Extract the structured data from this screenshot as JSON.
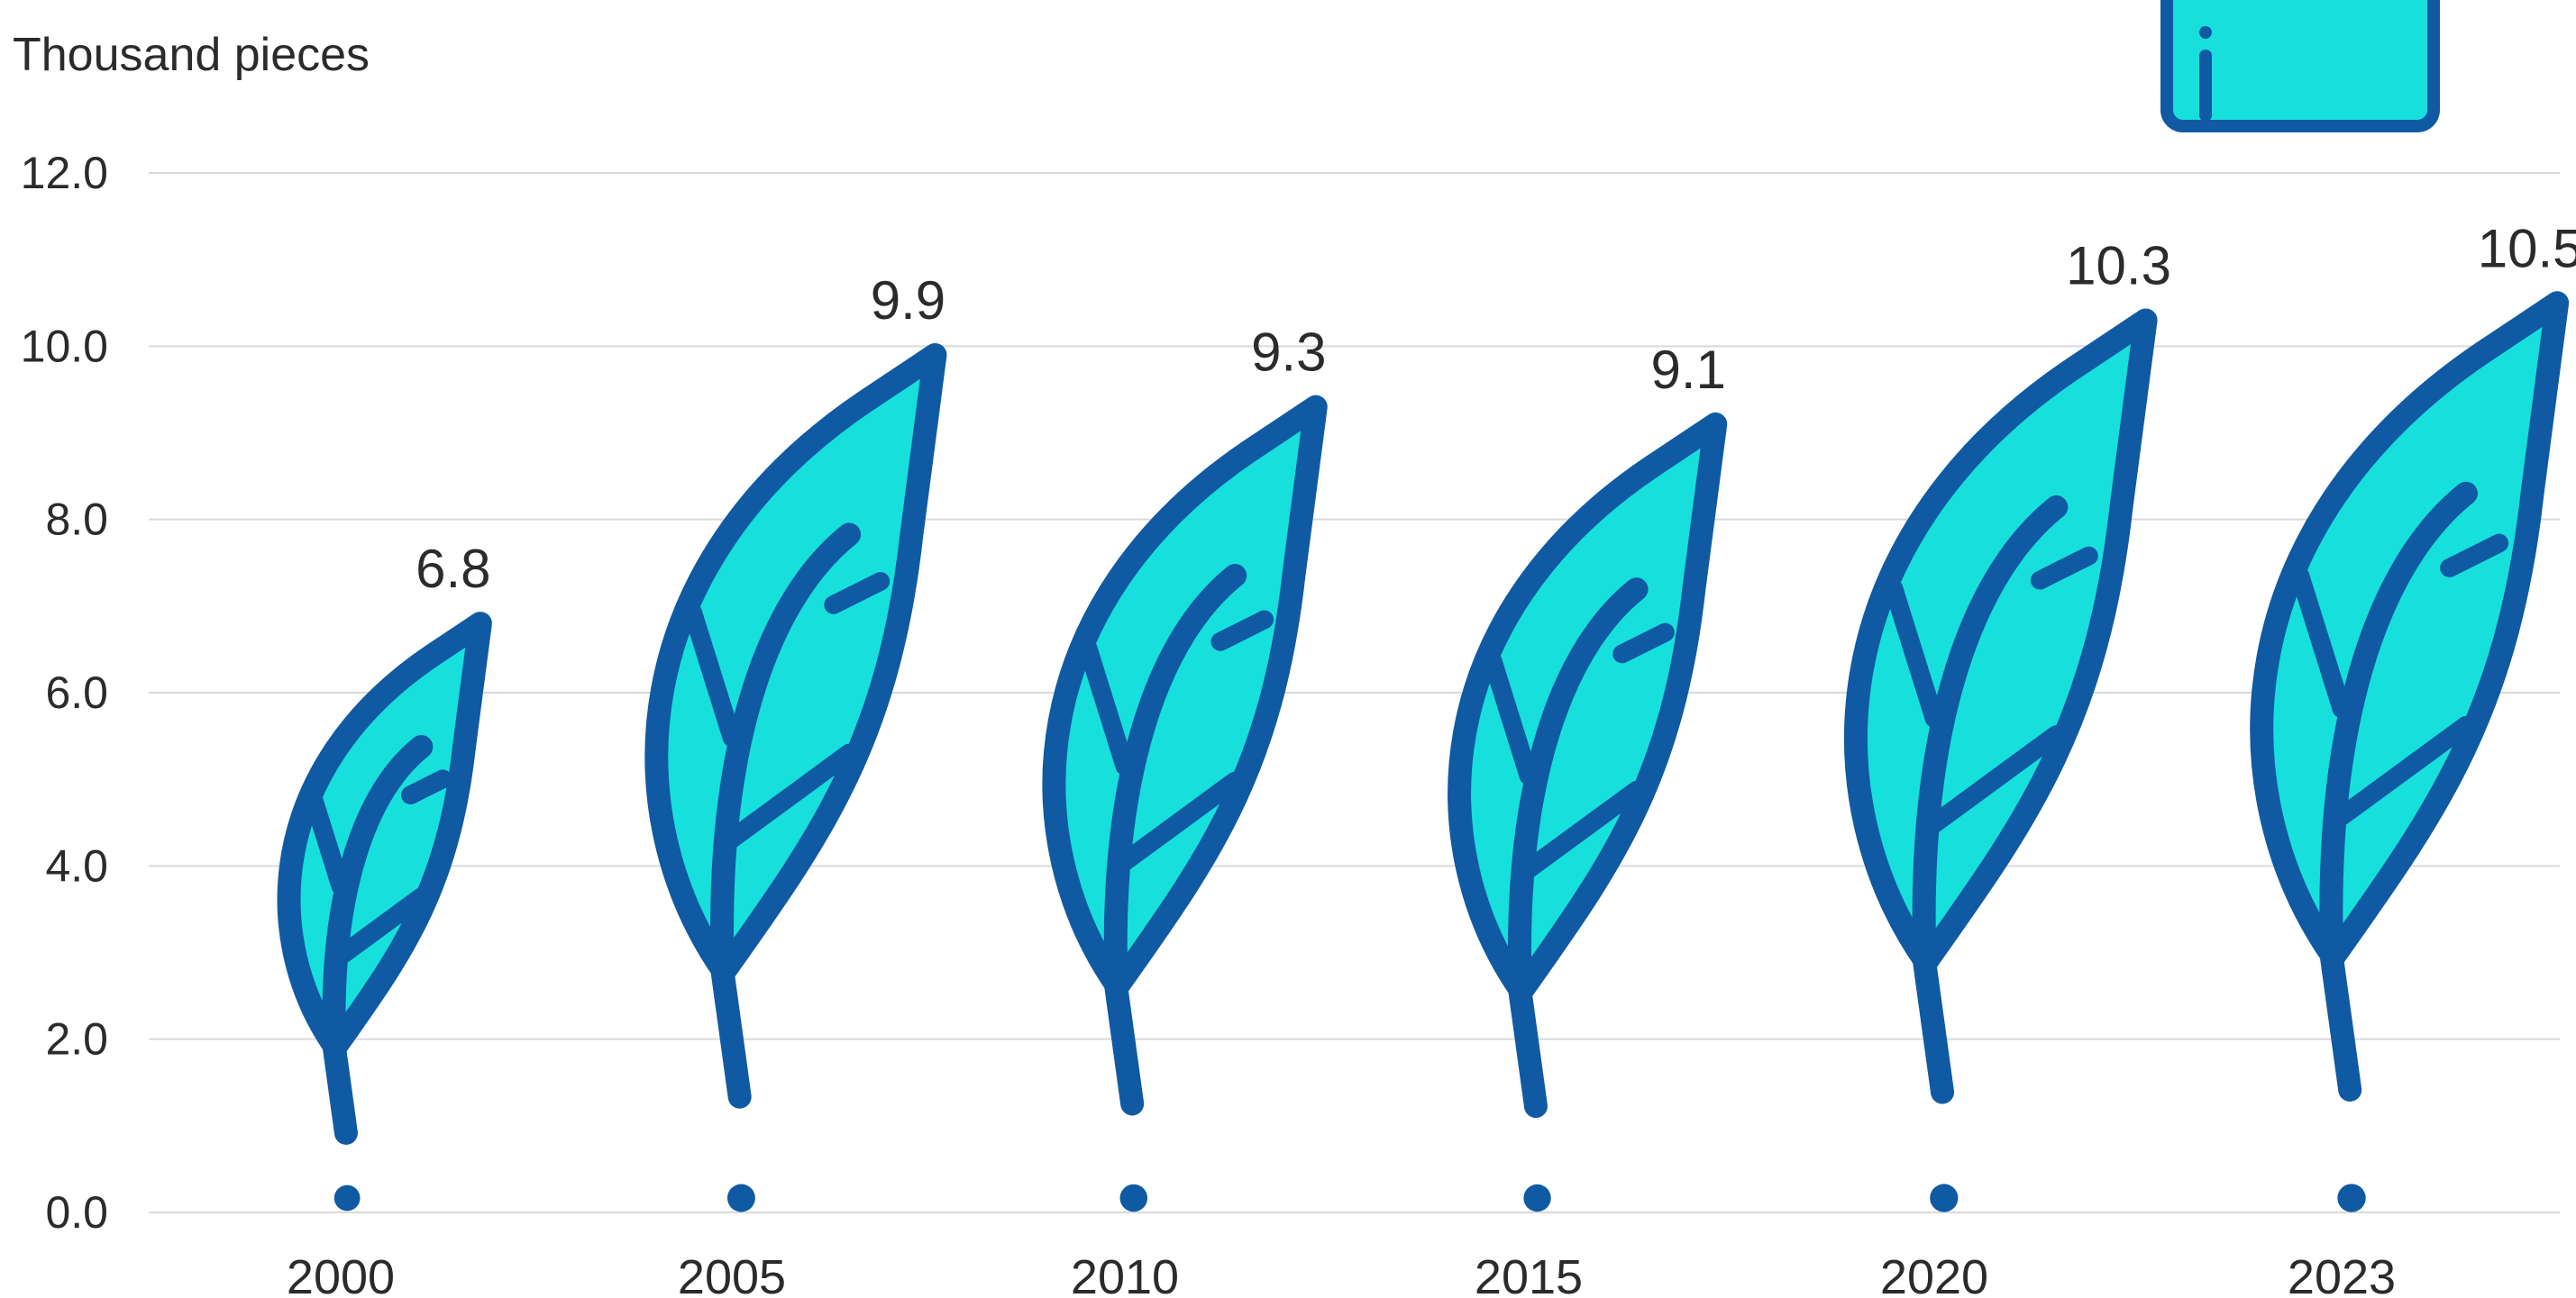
{
  "chart_data": {
    "type": "bar",
    "unit_label": "Thousand pieces",
    "categories": [
      "2000",
      "2005",
      "2010",
      "2015",
      "2020",
      "2023"
    ],
    "values": [
      6.8,
      9.9,
      9.3,
      9.1,
      10.3,
      10.5
    ],
    "value_labels": [
      "6.8",
      "9.9",
      "9.3",
      "9.1",
      "10.3",
      "10.5"
    ],
    "ylim": [
      0,
      12
    ],
    "yticks": [
      "0.0",
      "2.0",
      "4.0",
      "6.0",
      "8.0",
      "10.0",
      "12.0"
    ],
    "grid": true,
    "mark_style": "leaf-pictogram",
    "colors": {
      "leaf_fill": "#17e0dc",
      "leaf_stroke": "#0f5aa3",
      "grid": "#d9d9d9",
      "text": "#2b2b2b"
    }
  }
}
